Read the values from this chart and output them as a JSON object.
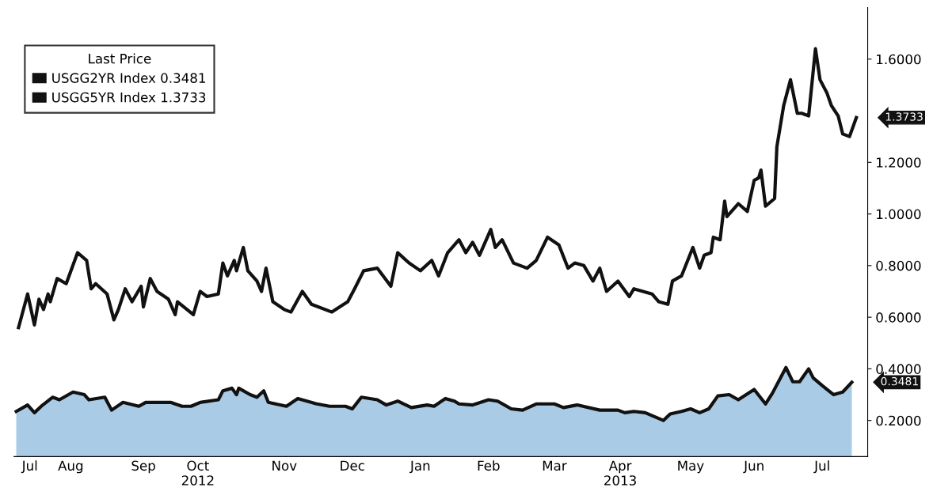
{
  "chart_data": {
    "type": "line",
    "legend_title": "Last Price",
    "legend": "top left",
    "grid": false,
    "marker": "none",
    "line_style": "solid",
    "xlim": [
      "2012-07-20",
      "2013-07-31"
    ],
    "ylim": [
      0.06,
      1.8
    ],
    "yticks": [
      {
        "value": 0.2,
        "label": "0.2000"
      },
      {
        "value": 0.4,
        "label": "0.4000"
      },
      {
        "value": 0.6,
        "label": "0.6000"
      },
      {
        "value": 0.8,
        "label": "0.8000"
      },
      {
        "value": 1.0,
        "label": "1.0000"
      },
      {
        "value": 1.2,
        "label": "1.2000"
      },
      {
        "value": 1.6,
        "label": "1.6000"
      }
    ],
    "xticks": [
      {
        "value": "2012-07-27",
        "label": "Jul"
      },
      {
        "value": "2012-08-14",
        "label": "Aug"
      },
      {
        "value": "2012-09-15",
        "label": "Sep"
      },
      {
        "value": "2012-10-09",
        "label": "Oct\n2012"
      },
      {
        "value": "2012-11-16",
        "label": "Nov"
      },
      {
        "value": "2012-12-16",
        "label": "Dec"
      },
      {
        "value": "2013-01-15",
        "label": "Jan"
      },
      {
        "value": "2013-02-14",
        "label": "Feb"
      },
      {
        "value": "2013-03-15",
        "label": "Mar"
      },
      {
        "value": "2013-04-13",
        "label": "Apr\n2013"
      },
      {
        "value": "2013-05-14",
        "label": "May"
      },
      {
        "value": "2013-06-11",
        "label": "Jun"
      },
      {
        "value": "2013-07-11",
        "label": "Jul"
      }
    ],
    "annotations": [
      {
        "text": "1.3733",
        "x": "2013-07-26",
        "y": 1.3733
      },
      {
        "text": "0.3481",
        "x": "2013-07-24",
        "y": 0.3481
      }
    ],
    "series": [
      {
        "name": "USGG2YR Index 0.3481",
        "type": "area",
        "color": "#111111",
        "x": [
          "2012-07-21",
          "2012-07-26",
          "2012-07-29",
          "2012-08-01",
          "2012-08-06",
          "2012-08-09",
          "2012-08-15",
          "2012-08-20",
          "2012-08-22",
          "2012-08-29",
          "2012-09-01",
          "2012-09-06",
          "2012-09-13",
          "2012-09-16",
          "2012-09-27",
          "2012-10-02",
          "2012-10-06",
          "2012-10-10",
          "2012-10-18",
          "2012-10-20",
          "2012-10-24",
          "2012-10-26",
          "2012-10-27",
          "2012-11-01",
          "2012-11-04",
          "2012-11-07",
          "2012-11-09",
          "2012-11-17",
          "2012-11-22",
          "2012-11-30",
          "2012-12-06",
          "2012-12-13",
          "2012-12-16",
          "2012-12-20",
          "2012-12-27",
          "2012-12-31",
          "2013-01-05",
          "2013-01-11",
          "2013-01-18",
          "2013-01-21",
          "2013-01-26",
          "2013-01-30",
          "2013-02-01",
          "2013-02-07",
          "2013-02-14",
          "2013-02-18",
          "2013-02-24",
          "2013-03-01",
          "2013-03-07",
          "2013-03-15",
          "2013-03-19",
          "2013-03-25",
          "2013-04-04",
          "2013-04-12",
          "2013-04-15",
          "2013-04-19",
          "2013-04-24",
          "2013-05-02",
          "2013-05-05",
          "2013-05-10",
          "2013-05-14",
          "2013-05-18",
          "2013-05-22",
          "2013-05-26",
          "2013-05-31",
          "2013-06-04",
          "2013-06-11",
          "2013-06-16",
          "2013-06-19",
          "2013-06-25",
          "2013-06-28",
          "2013-07-01",
          "2013-07-05",
          "2013-07-07",
          "2013-07-11",
          "2013-07-16",
          "2013-07-20",
          "2013-07-24"
        ],
        "values": [
          0.235,
          0.26,
          0.23,
          0.255,
          0.29,
          0.28,
          0.31,
          0.3,
          0.28,
          0.29,
          0.24,
          0.27,
          0.255,
          0.27,
          0.27,
          0.255,
          0.255,
          0.27,
          0.28,
          0.315,
          0.325,
          0.3,
          0.325,
          0.3,
          0.29,
          0.315,
          0.27,
          0.255,
          0.285,
          0.265,
          0.255,
          0.255,
          0.245,
          0.29,
          0.28,
          0.26,
          0.275,
          0.25,
          0.26,
          0.255,
          0.285,
          0.275,
          0.264,
          0.26,
          0.28,
          0.275,
          0.245,
          0.24,
          0.264,
          0.264,
          0.25,
          0.26,
          0.24,
          0.24,
          0.23,
          0.235,
          0.23,
          0.2,
          0.225,
          0.235,
          0.245,
          0.23,
          0.245,
          0.295,
          0.3,
          0.28,
          0.32,
          0.264,
          0.305,
          0.405,
          0.35,
          0.35,
          0.4,
          0.365,
          0.335,
          0.3,
          0.31,
          0.3481
        ]
      },
      {
        "name": "USGG5YR Index 1.3733",
        "color": "#111111",
        "x": [
          "2012-07-22",
          "2012-07-26",
          "2012-07-29",
          "2012-07-31",
          "2012-08-02",
          "2012-08-04",
          "2012-08-05",
          "2012-08-08",
          "2012-08-12",
          "2012-08-17",
          "2012-08-21",
          "2012-08-23",
          "2012-08-25",
          "2012-08-30",
          "2012-09-02",
          "2012-09-04",
          "2012-09-07",
          "2012-09-10",
          "2012-09-14",
          "2012-09-15",
          "2012-09-18",
          "2012-09-21",
          "2012-09-26",
          "2012-09-29",
          "2012-09-30",
          "2012-10-07",
          "2012-10-10",
          "2012-10-13",
          "2012-10-18",
          "2012-10-20",
          "2012-10-22",
          "2012-10-25",
          "2012-10-26",
          "2012-10-29",
          "2012-10-31",
          "2012-11-04",
          "2012-11-06",
          "2012-11-08",
          "2012-11-11",
          "2012-11-16",
          "2012-11-19",
          "2012-11-24",
          "2012-11-28",
          "2012-12-07",
          "2012-12-14",
          "2012-12-17",
          "2012-12-21",
          "2012-12-27",
          "2013-01-02",
          "2013-01-05",
          "2013-01-10",
          "2013-01-15",
          "2013-01-20",
          "2013-01-23",
          "2013-01-27",
          "2013-01-31",
          "2013-02-01",
          "2013-02-04",
          "2013-02-07",
          "2013-02-10",
          "2013-02-15",
          "2013-02-17",
          "2013-02-20",
          "2013-02-25",
          "2013-03-03",
          "2013-03-07",
          "2013-03-12",
          "2013-03-17",
          "2013-03-21",
          "2013-03-24",
          "2013-03-28",
          "2013-04-01",
          "2013-04-04",
          "2013-04-07",
          "2013-04-12",
          "2013-04-17",
          "2013-04-19",
          "2013-04-27",
          "2013-04-30",
          "2013-05-04",
          "2013-05-06",
          "2013-05-10",
          "2013-05-15",
          "2013-05-18",
          "2013-05-20",
          "2013-05-23",
          "2013-05-24",
          "2013-05-27",
          "2013-05-29",
          "2013-05-30",
          "2013-06-04",
          "2013-06-08",
          "2013-06-11",
          "2013-06-13",
          "2013-06-14",
          "2013-06-16",
          "2013-06-20",
          "2013-06-21",
          "2013-06-24",
          "2013-06-27",
          "2013-06-30",
          "2013-07-02",
          "2013-07-05",
          "2013-07-08",
          "2013-07-10",
          "2013-07-13",
          "2013-07-15",
          "2013-07-18",
          "2013-07-20",
          "2013-07-23",
          "2013-07-26"
        ],
        "values": [
          0.56,
          0.69,
          0.57,
          0.67,
          0.63,
          0.69,
          0.66,
          0.75,
          0.73,
          0.85,
          0.82,
          0.71,
          0.73,
          0.69,
          0.59,
          0.63,
          0.71,
          0.66,
          0.72,
          0.64,
          0.75,
          0.7,
          0.67,
          0.61,
          0.66,
          0.61,
          0.7,
          0.68,
          0.69,
          0.81,
          0.76,
          0.82,
          0.78,
          0.87,
          0.78,
          0.74,
          0.7,
          0.79,
          0.66,
          0.63,
          0.62,
          0.7,
          0.65,
          0.62,
          0.66,
          0.71,
          0.78,
          0.79,
          0.72,
          0.85,
          0.81,
          0.78,
          0.82,
          0.76,
          0.85,
          0.89,
          0.9,
          0.85,
          0.89,
          0.84,
          0.94,
          0.87,
          0.9,
          0.81,
          0.79,
          0.82,
          0.91,
          0.88,
          0.79,
          0.81,
          0.8,
          0.74,
          0.79,
          0.7,
          0.74,
          0.68,
          0.71,
          0.69,
          0.66,
          0.65,
          0.74,
          0.76,
          0.87,
          0.79,
          0.84,
          0.85,
          0.91,
          0.9,
          1.05,
          0.99,
          1.04,
          1.01,
          1.13,
          1.14,
          1.17,
          1.03,
          1.06,
          1.26,
          1.42,
          1.52,
          1.39,
          1.39,
          1.38,
          1.64,
          1.52,
          1.47,
          1.42,
          1.38,
          1.31,
          1.3,
          1.3733
        ]
      }
    ]
  }
}
